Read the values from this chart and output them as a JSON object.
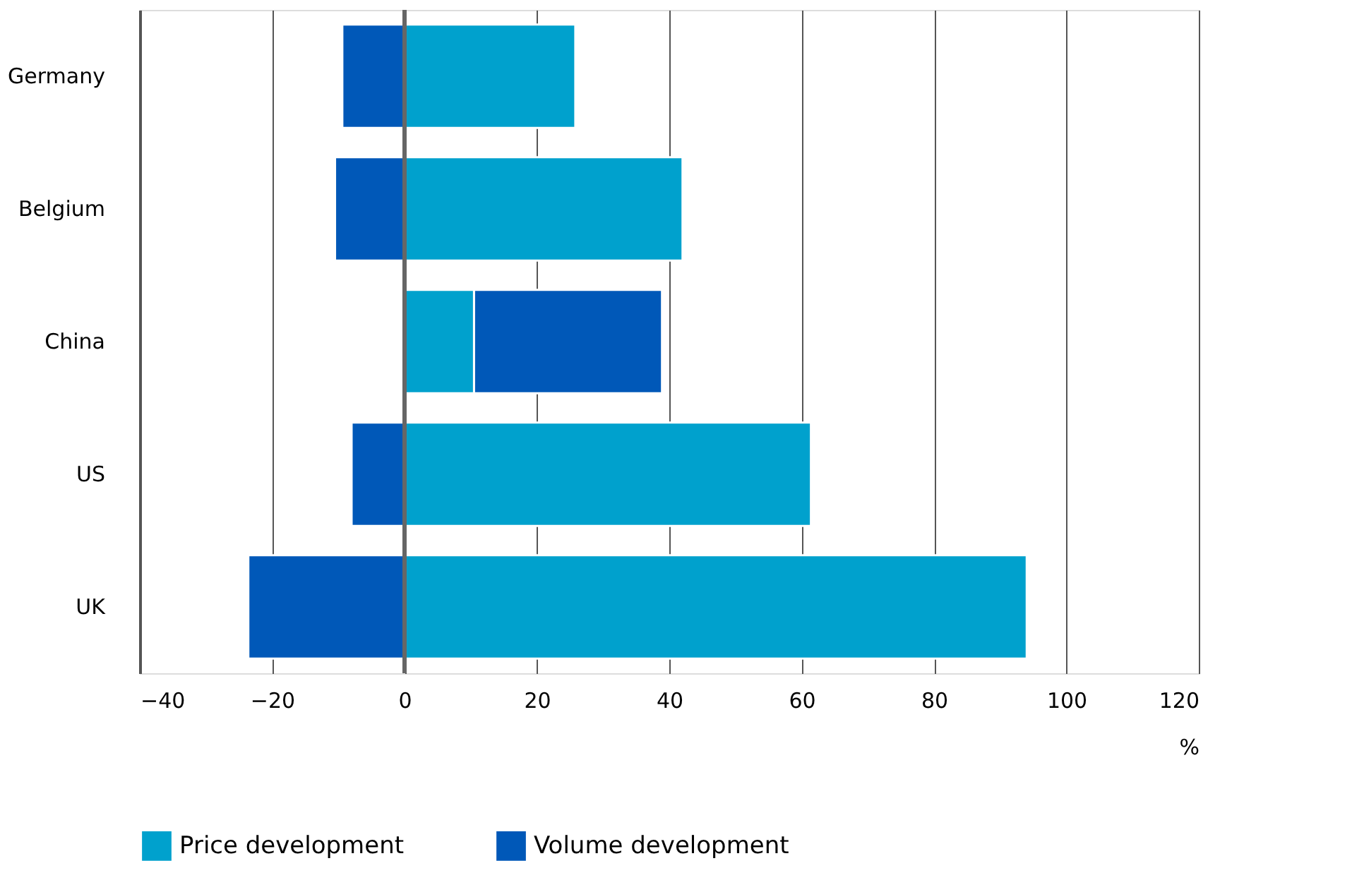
{
  "chart_data": {
    "type": "bar",
    "orientation": "horizontal",
    "stacked": true,
    "categories": [
      "Germany",
      "Belgium",
      "China",
      "US",
      "UK"
    ],
    "series": [
      {
        "name": "Price development",
        "color": "#00a1cd",
        "values": [
          25.8,
          42,
          10.5,
          61.4,
          94
        ]
      },
      {
        "name": "Volume development",
        "color": "#0058b8",
        "values": [
          -9.4,
          -10.5,
          28.4,
          -8,
          -23.6
        ]
      }
    ],
    "xlim": [
      -40,
      120
    ],
    "xticks": [
      -40,
      -20,
      0,
      20,
      40,
      60,
      80,
      100,
      120
    ],
    "xlabel": "%",
    "grid": "x",
    "legend": "bottom",
    "ref_lines": [
      {
        "axis": "x",
        "value": 0,
        "color": "#666666"
      }
    ]
  }
}
